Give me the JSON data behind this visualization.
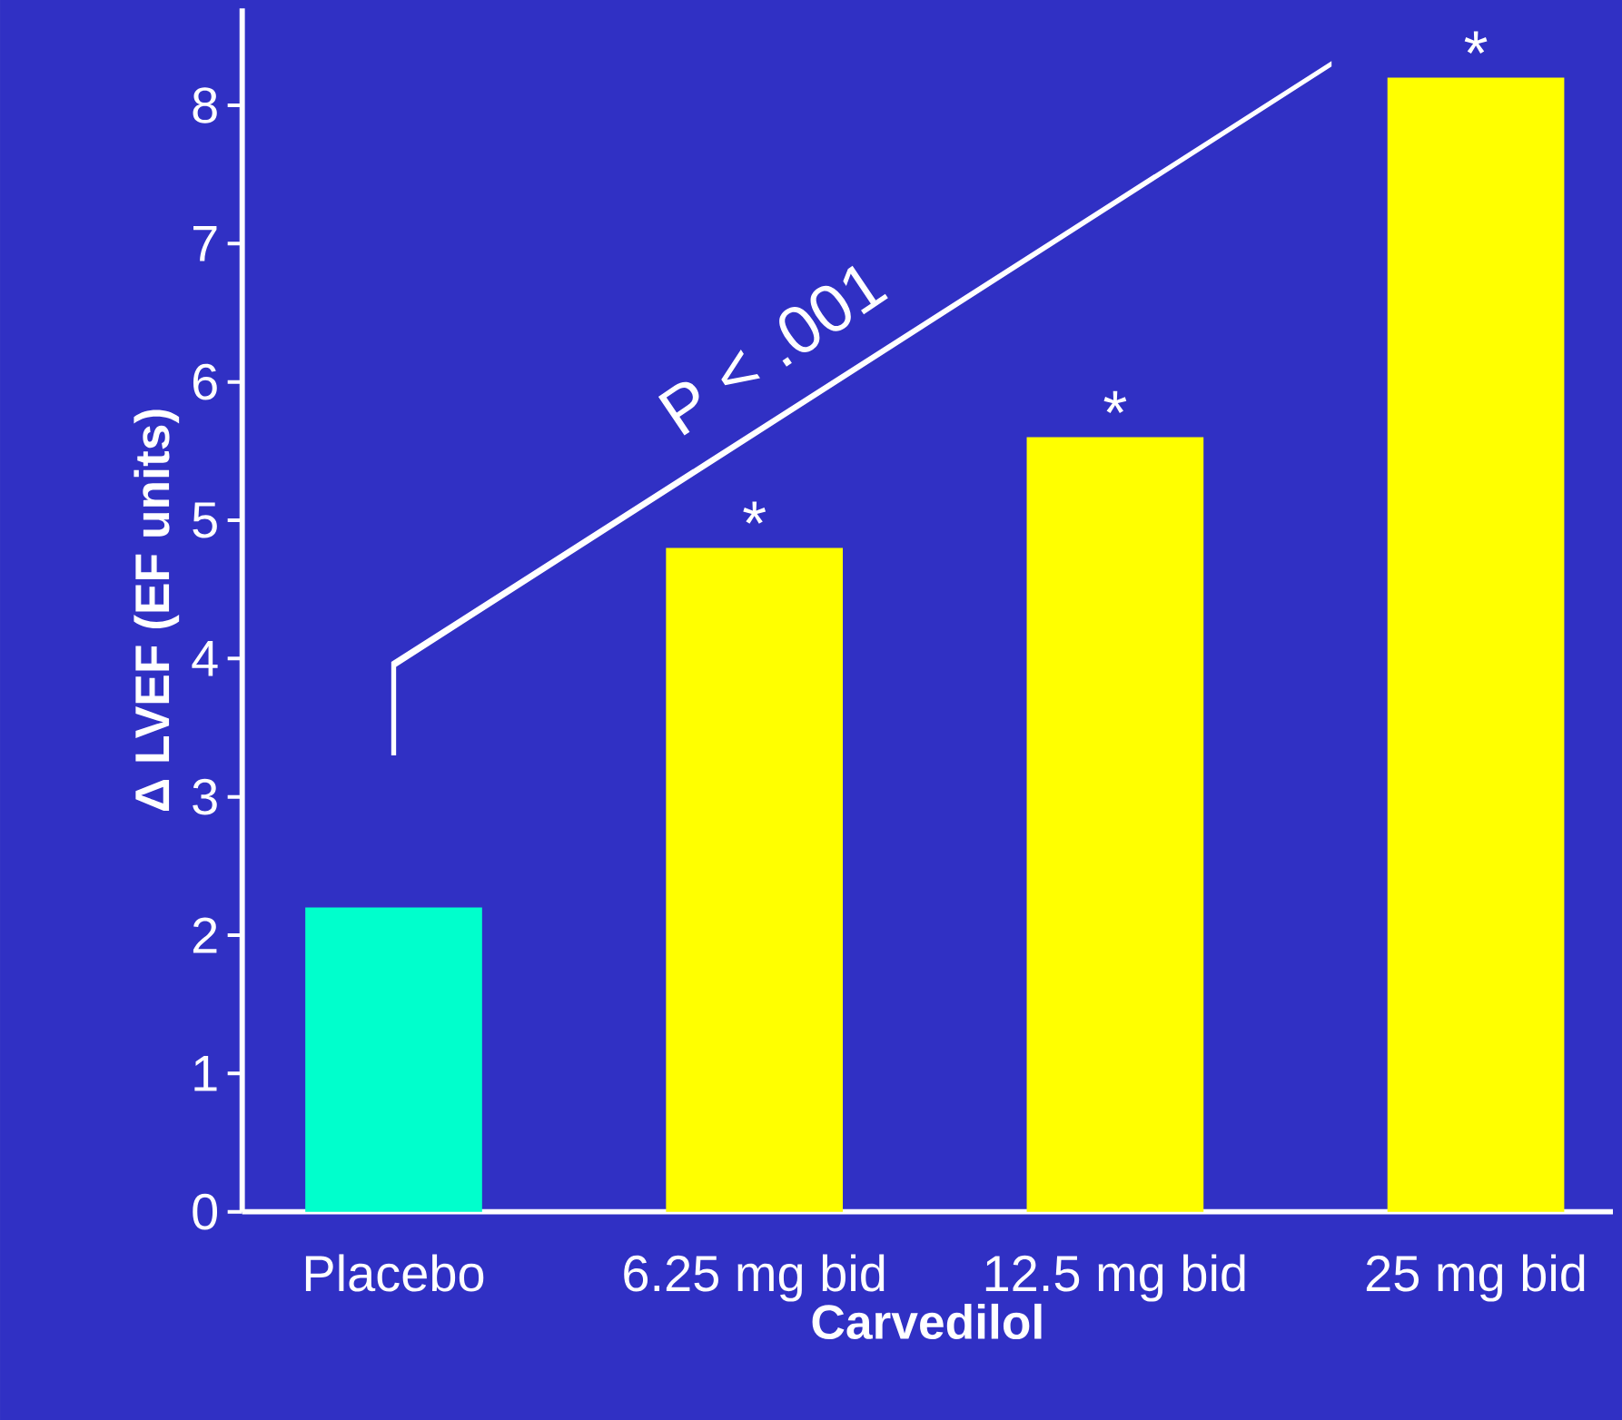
{
  "chart_data": {
    "type": "bar",
    "xlabel": "Carvedilol",
    "ylabel": "Δ LVEF (EF units)",
    "categories": [
      "Placebo",
      "6.25 mg bid",
      "12.5 mg bid",
      "25 mg bid"
    ],
    "values": [
      2.2,
      4.8,
      5.6,
      8.2
    ],
    "colors": [
      "#00ffcc",
      "#ffff00",
      "#ffff00",
      "#ffff00"
    ],
    "ylim": [
      0,
      8.7
    ],
    "yticks": [
      0,
      1,
      2,
      3,
      4,
      5,
      6,
      7,
      8
    ],
    "grid": false,
    "annotations": [
      {
        "text": "*",
        "x": "6.25 mg bid",
        "y": 4.8
      },
      {
        "text": "*",
        "x": "12.5 mg bid",
        "y": 5.6
      },
      {
        "text": "*",
        "x": "25 mg bid",
        "y": 8.2
      },
      "P < .001"
    ]
  }
}
